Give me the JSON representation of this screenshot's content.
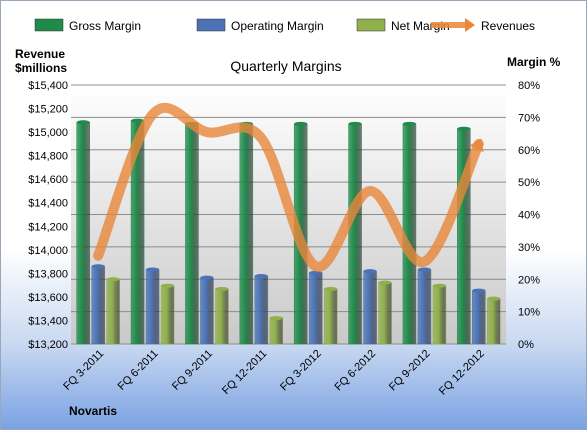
{
  "chart_data": {
    "type": "bar",
    "title": "Quarterly Margins",
    "categories": [
      "FQ 3-2011",
      "FQ 6-2011",
      "FQ 9-2011",
      "FQ 12-2011",
      "FQ 3-2012",
      "FQ 6-2012",
      "FQ 9-2012",
      "FQ 12-2012"
    ],
    "series": [
      {
        "name": "Gross Margin",
        "axis": "right",
        "unit": "%",
        "values": [
          68.5,
          69.0,
          68.0,
          68.0,
          68.0,
          68.0,
          68.0,
          66.5
        ],
        "color": "#1f8a4a"
      },
      {
        "name": "Operating Margin",
        "axis": "right",
        "unit": "%",
        "values": [
          24.0,
          23.0,
          20.5,
          21.0,
          22.0,
          22.5,
          23.0,
          16.5
        ],
        "color": "#4a72b5"
      },
      {
        "name": "Net Margin",
        "axis": "right",
        "unit": "%",
        "values": [
          20.0,
          18.0,
          17.0,
          8.0,
          17.0,
          19.0,
          18.0,
          14.0
        ],
        "color": "#8fb04a"
      },
      {
        "name": "Revenues",
        "type": "line",
        "axis": "left",
        "unit": "$millions",
        "values": [
          13950,
          15150,
          15000,
          14950,
          13860,
          14500,
          13900,
          14900
        ],
        "color": "#e8873a"
      }
    ],
    "left_axis": {
      "label_line1": "Revenue",
      "label_line2": "$millions",
      "min": 13200,
      "max": 15400,
      "step": 200,
      "ticks": [
        "$13,200",
        "$13,400",
        "$13,600",
        "$13,800",
        "$14,000",
        "$14,200",
        "$14,400",
        "$14,600",
        "$14,800",
        "$15,000",
        "$15,200",
        "$15,400"
      ]
    },
    "right_axis": {
      "label": "Margin %",
      "min": 0,
      "max": 80,
      "step": 10,
      "ticks": [
        "0%",
        "10%",
        "20%",
        "30%",
        "40%",
        "50%",
        "60%",
        "70%",
        "80%"
      ]
    },
    "legend": {
      "placement": "top",
      "items": [
        "Gross Margin",
        "Operating Margin",
        "Net Margin",
        "Revenues"
      ]
    },
    "grid": true,
    "footer": "Novartis"
  }
}
